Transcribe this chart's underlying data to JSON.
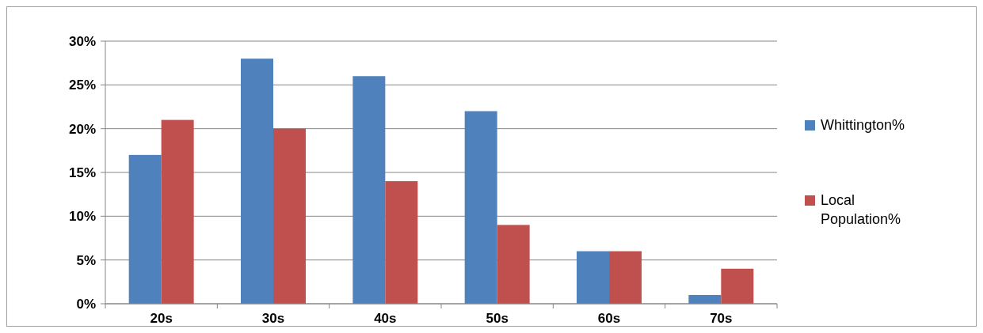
{
  "chart_data": {
    "type": "bar",
    "categories": [
      "20s",
      "30s",
      "40s",
      "50s",
      "60s",
      "70s"
    ],
    "series": [
      {
        "name": "Whittington%",
        "color": "#4f81bd",
        "values": [
          17,
          28,
          26,
          22,
          6,
          1
        ]
      },
      {
        "name": "Local Population%",
        "color": "#c0504d",
        "values": [
          21,
          20,
          14,
          9,
          6,
          4
        ]
      }
    ],
    "ylim": [
      0,
      30
    ],
    "yticks": [
      {
        "value": 0,
        "label": "0%"
      },
      {
        "value": 5,
        "label": "5%"
      },
      {
        "value": 10,
        "label": "10%"
      },
      {
        "value": 15,
        "label": "15%"
      },
      {
        "value": 20,
        "label": "20%"
      },
      {
        "value": 25,
        "label": "25%"
      },
      {
        "value": 30,
        "label": "30%"
      }
    ],
    "grid": "y",
    "legend": "right"
  }
}
